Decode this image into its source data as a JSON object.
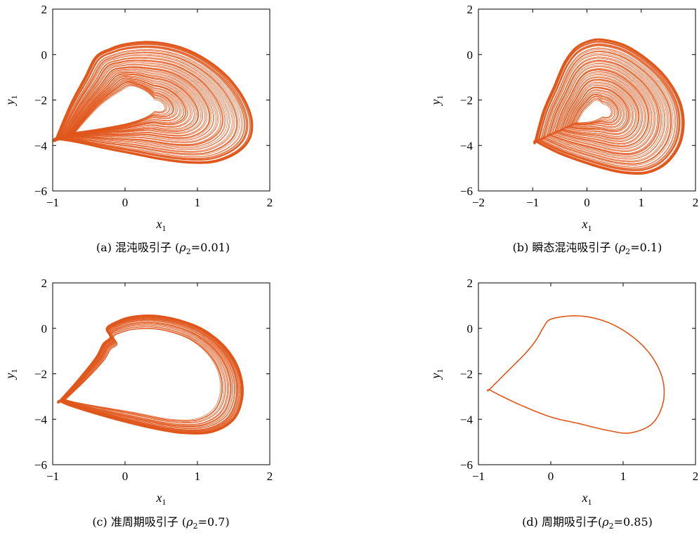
{
  "colors": {
    "trajectory": "#e0571c",
    "axis": "#000000"
  },
  "chart_data": [
    {
      "type": "line",
      "caption_prefix": "(a) 混沌吸引子 (",
      "caption_rho": "ρ",
      "caption_sub": "2",
      "caption_suffix": "=0.01)",
      "xlabel": "x",
      "xlabel_sub": "1",
      "ylabel": "y",
      "ylabel_sub": "1",
      "xlim": [
        -1,
        2
      ],
      "ylim": [
        -6,
        2
      ],
      "xticks": [
        "−1",
        "0",
        "1",
        "2"
      ],
      "xtick_values": [
        -1,
        0,
        1,
        2
      ],
      "yticks": [
        "−6",
        "−4",
        "−2",
        "0",
        "2"
      ],
      "ytick_values": [
        -6,
        -4,
        -2,
        0,
        2
      ],
      "series": [
        {
          "style": "dense-chaotic",
          "band": 0.9,
          "x": [
            -0.95,
            -0.75,
            -0.55,
            -0.4,
            -0.2,
            0.0,
            0.3,
            0.6,
            0.9,
            1.2,
            1.45,
            1.65,
            1.75,
            1.72,
            1.55,
            1.25,
            0.9,
            0.5,
            0.1,
            -0.3,
            -0.65,
            -0.95
          ],
          "y": [
            -3.7,
            -2.2,
            -1.0,
            -0.1,
            0.25,
            0.45,
            0.55,
            0.45,
            0.15,
            -0.4,
            -1.1,
            -2.0,
            -2.9,
            -3.7,
            -4.3,
            -4.7,
            -4.75,
            -4.6,
            -4.35,
            -4.1,
            -3.85,
            -3.7
          ]
        }
      ]
    },
    {
      "type": "line",
      "caption_prefix": "(b) 瞬态混沌吸引子 (",
      "caption_rho": "ρ",
      "caption_sub": "2",
      "caption_suffix": "=0.1)",
      "xlabel": "x",
      "xlabel_sub": "1",
      "ylabel": "y",
      "ylabel_sub": "1",
      "xlim": [
        -2,
        2
      ],
      "ylim": [
        -6,
        2
      ],
      "xticks": [
        "−2",
        "−1",
        "0",
        "1",
        "2"
      ],
      "xtick_values": [
        -2,
        -1,
        0,
        1,
        2
      ],
      "yticks": [
        "−6",
        "−4",
        "−2",
        "0",
        "2"
      ],
      "ytick_values": [
        -6,
        -4,
        -2,
        0,
        2
      ],
      "series": [
        {
          "style": "dense-transient",
          "band": 0.9,
          "x": [
            -0.95,
            -0.8,
            -0.6,
            -0.55,
            -0.4,
            -0.2,
            0.05,
            0.3,
            0.7,
            1.1,
            1.45,
            1.7,
            1.78,
            1.7,
            1.45,
            1.1,
            0.7,
            0.3,
            -0.1,
            -0.5,
            -0.8,
            -0.95
          ],
          "y": [
            -3.8,
            -2.5,
            -1.4,
            -1.1,
            -0.3,
            0.3,
            0.6,
            0.65,
            0.4,
            -0.2,
            -1.0,
            -2.0,
            -3.0,
            -4.0,
            -4.8,
            -5.2,
            -5.2,
            -5.0,
            -4.7,
            -4.35,
            -4.0,
            -3.8
          ]
        }
      ]
    },
    {
      "type": "line",
      "caption_prefix": "(c) 准周期吸引子 (",
      "caption_rho": "ρ",
      "caption_sub": "2",
      "caption_suffix": "=0.7)",
      "xlabel": "x",
      "xlabel_sub": "1",
      "ylabel": "y",
      "ylabel_sub": "1",
      "xlim": [
        -1,
        2
      ],
      "ylim": [
        -6,
        2
      ],
      "xticks": [
        "−1",
        "0",
        "1",
        "2"
      ],
      "xtick_values": [
        -1,
        0,
        1,
        2
      ],
      "yticks": [
        "−6",
        "−4",
        "−2",
        "0",
        "2"
      ],
      "ytick_values": [
        -6,
        -4,
        -2,
        0,
        2
      ],
      "series": [
        {
          "style": "quasi-periodic",
          "band": 0.45,
          "x": [
            -0.9,
            -0.65,
            -0.4,
            -0.3,
            -0.2,
            -0.25,
            -0.1,
            0.1,
            0.4,
            0.75,
            1.1,
            1.4,
            1.58,
            1.62,
            1.5,
            1.2,
            0.8,
            0.4,
            0.0,
            -0.4,
            -0.75,
            -0.9
          ],
          "y": [
            -3.2,
            -2.3,
            -1.3,
            -0.7,
            -0.4,
            0.0,
            0.3,
            0.5,
            0.55,
            0.35,
            -0.1,
            -0.9,
            -1.9,
            -3.0,
            -4.0,
            -4.55,
            -4.6,
            -4.4,
            -4.1,
            -3.75,
            -3.4,
            -3.2
          ]
        }
      ]
    },
    {
      "type": "line",
      "caption_prefix": "(d) 周期吸引子(",
      "caption_rho": "ρ",
      "caption_sub": "2",
      "caption_suffix": "=0.85)",
      "xlabel": "x",
      "xlabel_sub": "1",
      "ylabel": "y",
      "ylabel_sub": "1",
      "xlim": [
        -1,
        2
      ],
      "ylim": [
        -6,
        2
      ],
      "xticks": [
        "−1",
        "0",
        "1",
        "2"
      ],
      "xtick_values": [
        -1,
        0,
        1,
        2
      ],
      "yticks": [
        "−6",
        "−4",
        "−2",
        "0",
        "2"
      ],
      "ytick_values": [
        -6,
        -4,
        -2,
        0,
        2
      ],
      "series": [
        {
          "style": "periodic",
          "band": 0,
          "x": [
            -0.85,
            -0.6,
            -0.35,
            -0.2,
            -0.1,
            0.0,
            0.3,
            0.6,
            0.9,
            1.2,
            1.42,
            1.55,
            1.55,
            1.4,
            1.1,
            0.8,
            0.4,
            0.0,
            -0.4,
            -0.7,
            -0.85
          ],
          "y": [
            -2.7,
            -1.9,
            -1.1,
            -0.5,
            0.05,
            0.4,
            0.55,
            0.45,
            0.1,
            -0.55,
            -1.35,
            -2.3,
            -3.3,
            -4.2,
            -4.6,
            -4.5,
            -4.2,
            -3.9,
            -3.4,
            -2.95,
            -2.7
          ]
        }
      ]
    }
  ]
}
